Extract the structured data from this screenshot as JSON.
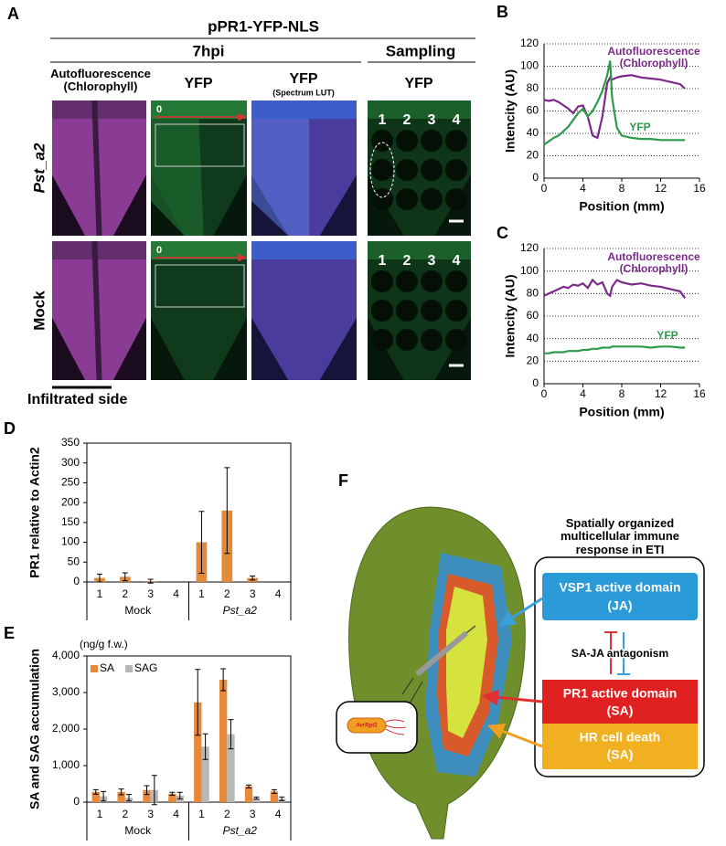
{
  "panel_a": {
    "label": "A",
    "title": "pPR1-YFP-NLS",
    "time": "7hpi",
    "sampling": "Sampling",
    "columns": [
      "Autofluorescence (Chlorophyll)",
      "YFP",
      "YFP",
      "YFP"
    ],
    "column_note": "(Spectrum LUT)",
    "rows": [
      "Pst_a2",
      "Mock"
    ],
    "origin_labels": [
      "0",
      "0"
    ],
    "spot_labels": [
      [
        "1",
        "2",
        "3",
        "4"
      ],
      [
        "1",
        "2",
        "3",
        "4"
      ]
    ],
    "scale_caption": "Infiltrated side"
  },
  "chart_data": [
    {
      "type": "line",
      "panel": "B",
      "x_label": "Position (mm)",
      "y_label": "Intencity (AU)",
      "xlim": [
        0,
        16
      ],
      "xticks": [
        0,
        4,
        8,
        12,
        16
      ],
      "ylim": [
        0,
        120
      ],
      "yticks": [
        0,
        20,
        40,
        60,
        80,
        100,
        120
      ],
      "grid": true,
      "x": [
        0,
        0.5,
        1,
        1.5,
        2,
        2.5,
        3,
        3.5,
        4,
        4.5,
        5,
        5.5,
        6,
        6.5,
        6.8,
        7,
        7.5,
        8,
        9,
        10,
        11,
        12,
        13,
        14,
        14.5
      ],
      "series": [
        {
          "name": "Autofluorescence (Chlorophyll)",
          "color": "#7b2a8a",
          "values": [
            70,
            69,
            70,
            68,
            65,
            62,
            58,
            64,
            65,
            55,
            38,
            36,
            55,
            85,
            90,
            88,
            90,
            91,
            92,
            90,
            89,
            88,
            86,
            84,
            80
          ]
        },
        {
          "name": "YFP",
          "color": "#2e9a4c",
          "values": [
            30,
            33,
            36,
            38,
            42,
            46,
            52,
            58,
            62,
            55,
            60,
            68,
            78,
            92,
            105,
            72,
            45,
            38,
            36,
            35,
            35,
            34,
            34,
            34,
            34
          ]
        }
      ]
    },
    {
      "type": "line",
      "panel": "C",
      "x_label": "Position (mm)",
      "y_label": "Intencity (AU)",
      "xlim": [
        0,
        16
      ],
      "xticks": [
        0,
        4,
        8,
        12,
        16
      ],
      "ylim": [
        0,
        120
      ],
      "yticks": [
        0,
        20,
        40,
        60,
        80,
        100,
        120
      ],
      "grid": true,
      "x": [
        0,
        0.5,
        1,
        1.5,
        2,
        2.5,
        3,
        3.5,
        4,
        4.5,
        5,
        5.5,
        6,
        6.5,
        6.8,
        7,
        7.5,
        8,
        9,
        10,
        11,
        12,
        13,
        14,
        14.5
      ],
      "series": [
        {
          "name": "Autofluorescence (Chlorophyll)",
          "color": "#7b2a8a",
          "values": [
            78,
            80,
            82,
            84,
            86,
            85,
            88,
            87,
            89,
            85,
            92,
            88,
            90,
            80,
            78,
            86,
            92,
            90,
            88,
            89,
            87,
            86,
            84,
            82,
            76
          ]
        },
        {
          "name": "YFP",
          "color": "#2e9a4c",
          "values": [
            27,
            27,
            28,
            28,
            28,
            29,
            29,
            29,
            30,
            30,
            31,
            31,
            32,
            32,
            32,
            33,
            33,
            33,
            33,
            33,
            32,
            33,
            33,
            32,
            32
          ]
        }
      ]
    },
    {
      "type": "bar",
      "panel": "D",
      "y_label": "PR1 relative to Actin2",
      "categories": [
        "1",
        "2",
        "3",
        "4",
        "1",
        "2",
        "3",
        "4"
      ],
      "group_labels": [
        "Mock",
        "Pst_a2"
      ],
      "ylim": [
        0,
        350
      ],
      "yticks": [
        0,
        50,
        100,
        150,
        200,
        250,
        300,
        350
      ],
      "series": [
        {
          "color": "#e08a3a",
          "values": [
            10,
            13,
            2,
            0,
            100,
            180,
            10,
            0
          ],
          "errors": [
            10,
            10,
            5,
            0,
            78,
            108,
            5,
            0
          ]
        }
      ]
    },
    {
      "type": "bar",
      "panel": "E",
      "y_label": "SA and SAG accumulation",
      "y_units": "(ng/g f.w.)",
      "categories": [
        "1",
        "2",
        "3",
        "4",
        "1",
        "2",
        "3",
        "4"
      ],
      "group_labels": [
        "Mock",
        "Pst_a2"
      ],
      "ylim": [
        0,
        4000
      ],
      "yticks": [
        0,
        {
          "value": 1000,
          "label": "1,000"
        },
        {
          "value": 2000,
          "label": "2,000"
        },
        {
          "value": 3000,
          "label": "3,000"
        },
        {
          "value": 4000,
          "label": "4,000"
        }
      ],
      "legend": "upper left",
      "series": [
        {
          "name": "SA",
          "color": "#e8893a",
          "values": [
            280,
            280,
            330,
            230,
            2730,
            3350,
            430,
            290
          ],
          "errors": [
            60,
            80,
            120,
            40,
            900,
            300,
            40,
            50
          ]
        },
        {
          "name": "SAG",
          "color": "#b8b8b8",
          "values": [
            160,
            120,
            330,
            180,
            1520,
            1860,
            110,
            90
          ],
          "errors": [
            130,
            90,
            400,
            90,
            350,
            400,
            30,
            50
          ]
        }
      ]
    }
  ],
  "panel_f": {
    "label": "F",
    "title": "Spatially organized multicellular immune response in ETI",
    "domains": [
      {
        "name": "VSP1 active domain",
        "hormone": "(JA)"
      },
      {
        "name": "PR1 active domain",
        "hormone": "(SA)"
      },
      {
        "name": "HR cell death",
        "hormone": "(SA)"
      }
    ],
    "antagonism": "SA-JA antagonism",
    "effector": "AvrRpt2"
  }
}
